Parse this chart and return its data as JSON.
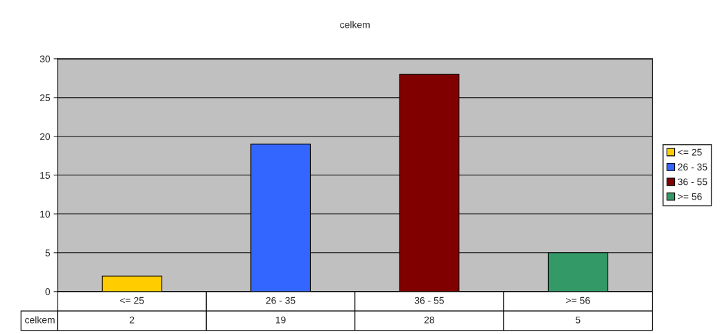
{
  "chart_data": {
    "type": "bar",
    "title": "celkem",
    "categories": [
      "<= 25",
      "26 - 35",
      "36 - 55",
      ">= 56"
    ],
    "annotations": [
      "celkem"
    ],
    "series": [
      {
        "name": "<= 25",
        "color": "#ffcc00",
        "values": [
          2,
          null,
          null,
          null
        ]
      },
      {
        "name": "26 - 35",
        "color": "#3366ff",
        "values": [
          null,
          19,
          null,
          null
        ]
      },
      {
        "name": "36 - 55",
        "color": "#800000",
        "values": [
          null,
          null,
          28,
          null
        ]
      },
      {
        "name": ">= 56",
        "color": "#339966",
        "values": [
          null,
          null,
          null,
          5
        ]
      }
    ],
    "ylim": [
      0,
      30
    ],
    "yticks": [
      0,
      5,
      10,
      15,
      20,
      25,
      30
    ],
    "grid": "y",
    "legend": "right",
    "data_labels": true
  }
}
